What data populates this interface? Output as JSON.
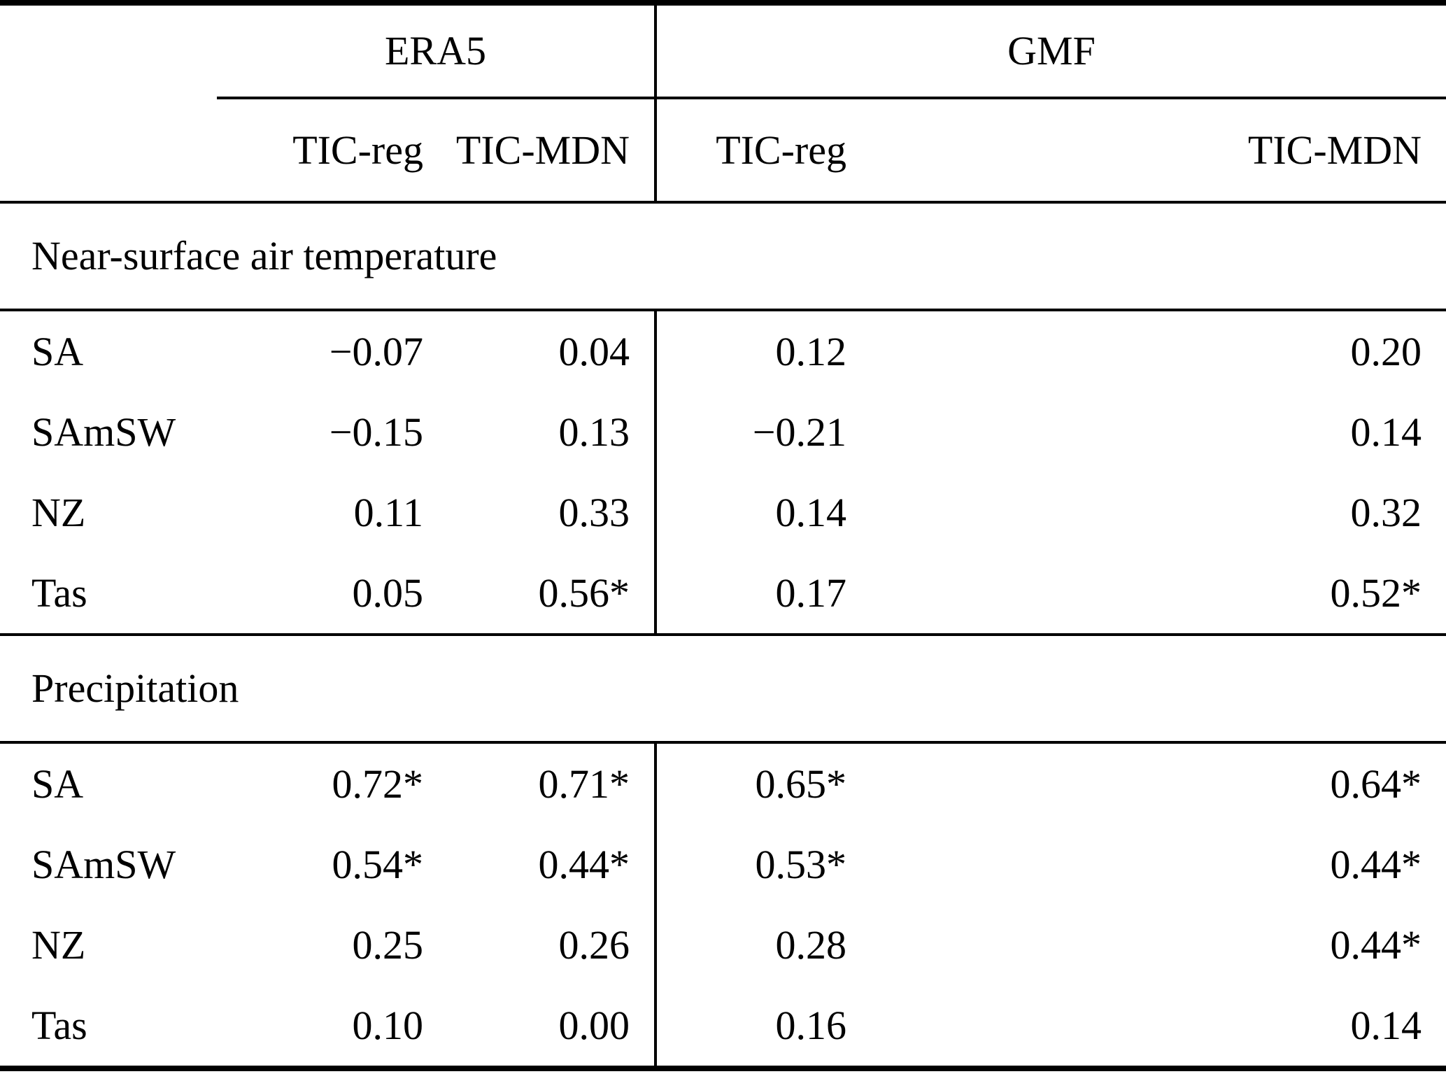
{
  "table": {
    "column_groups": [
      {
        "label": "ERA5"
      },
      {
        "label": "GMF"
      }
    ],
    "column_headers": [
      "TIC-reg",
      "TIC-MDN",
      "TIC-reg",
      "TIC-MDN"
    ],
    "sections": [
      {
        "title": "Near-surface air temperature",
        "rows": [
          {
            "label": "SA",
            "values": [
              "−0.07",
              "0.04",
              "0.12",
              "0.20"
            ]
          },
          {
            "label": "SAmSW",
            "values": [
              "−0.15",
              "0.13",
              "−0.21",
              "0.14"
            ]
          },
          {
            "label": "NZ",
            "values": [
              "0.11",
              "0.33",
              "0.14",
              "0.32"
            ]
          },
          {
            "label": "Tas",
            "values": [
              "0.05",
              "0.56*",
              "0.17",
              "0.52*"
            ]
          }
        ]
      },
      {
        "title": "Precipitation",
        "rows": [
          {
            "label": "SA",
            "values": [
              "0.72*",
              "0.71*",
              "0.65*",
              "0.64*"
            ]
          },
          {
            "label": "SAmSW",
            "values": [
              "0.54*",
              "0.44*",
              "0.53*",
              "0.44*"
            ]
          },
          {
            "label": "NZ",
            "values": [
              "0.25",
              "0.26",
              "0.28",
              "0.44*"
            ]
          },
          {
            "label": "Tas",
            "values": [
              "0.10",
              "0.00",
              "0.16",
              "0.14"
            ]
          }
        ]
      }
    ]
  },
  "colors": {
    "background": "#ffffff",
    "text": "#000000",
    "rule": "#000000"
  }
}
